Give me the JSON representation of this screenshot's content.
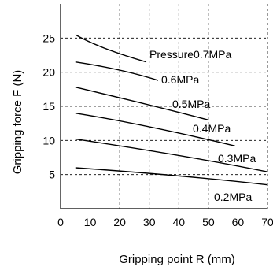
{
  "chart_data": {
    "type": "line",
    "title": "",
    "xlabel": "Gripping point R (mm)",
    "ylabel": "Gripping force F (N)",
    "xlim": [
      0,
      70
    ],
    "ylim": [
      0,
      30
    ],
    "x_ticks": [
      "0",
      "10",
      "20",
      "30",
      "40",
      "50",
      "60",
      "70"
    ],
    "y_ticks": [
      "5",
      "10",
      "15",
      "20",
      "25"
    ],
    "grid": true,
    "series": [
      {
        "name": "Pressure0.7MPa",
        "x": [
          5,
          15,
          29
        ],
        "y": [
          25.5,
          23.5,
          21.5
        ]
      },
      {
        "name": "0.6MPa",
        "x": [
          5,
          20,
          33
        ],
        "y": [
          21.5,
          20.3,
          18.8
        ]
      },
      {
        "name": "0.5MPa",
        "x": [
          5,
          30,
          50
        ],
        "y": [
          17.8,
          15.2,
          13.0
        ]
      },
      {
        "name": "0.4MPa",
        "x": [
          5,
          30,
          59
        ],
        "y": [
          14.0,
          12.0,
          9.2
        ]
      },
      {
        "name": "0.3MPa",
        "x": [
          5,
          40,
          70
        ],
        "y": [
          10.2,
          7.8,
          5.4
        ]
      },
      {
        "name": "0.2MPa",
        "x": [
          5,
          40,
          70
        ],
        "y": [
          6.0,
          4.8,
          3.5
        ]
      }
    ]
  }
}
